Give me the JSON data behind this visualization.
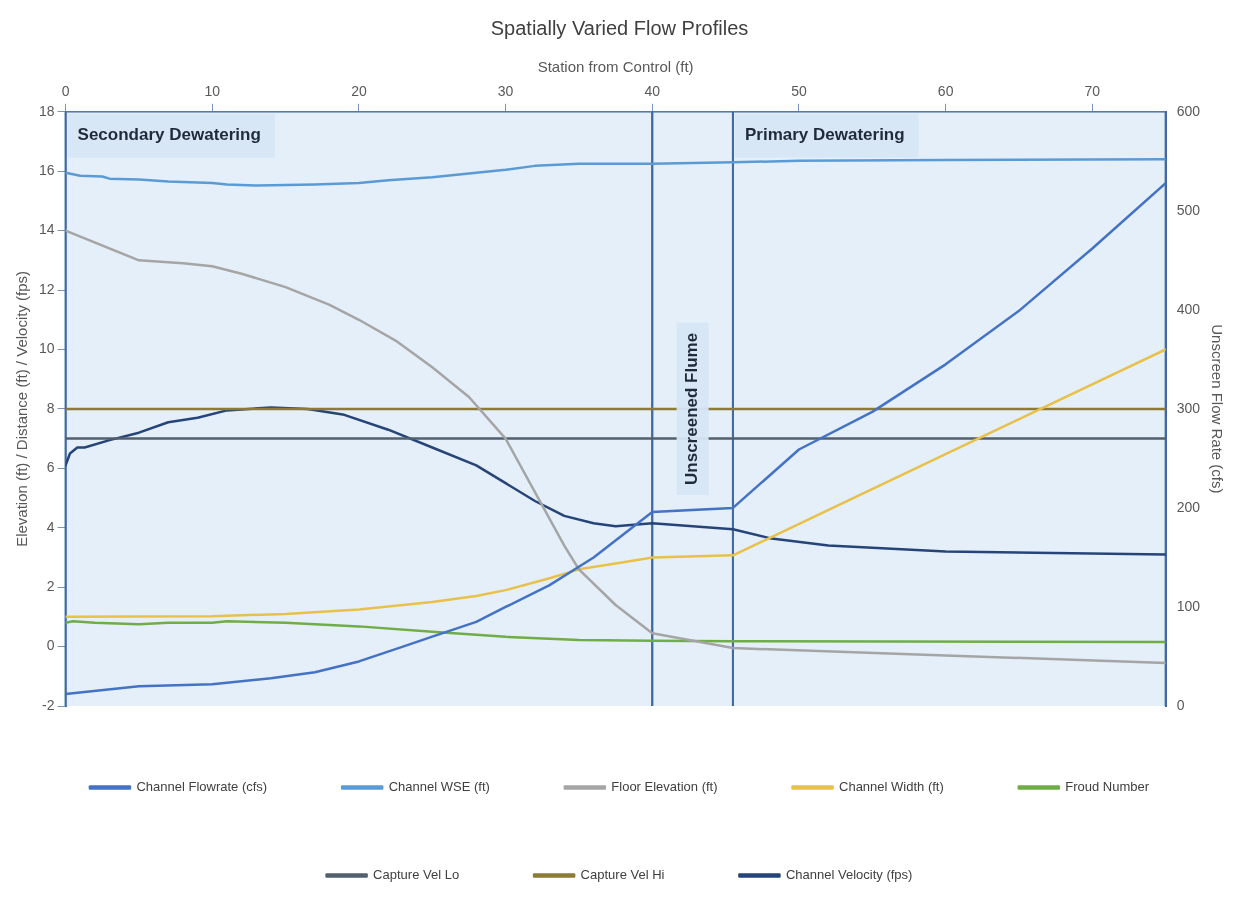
{
  "chart_data": {
    "type": "line",
    "title": "Spatially Varied Flow Profiles",
    "xlabel": "Station from Control (ft)",
    "ylabel": "Elevation (ft) / Distance (ft) / Velocity (fps)",
    "y2label": "Unscreen Flow Rate (cfs)",
    "xlim": [
      0,
      75
    ],
    "xticks": [
      0,
      10,
      20,
      30,
      40,
      50,
      60,
      70
    ],
    "ylim": [
      -2,
      18
    ],
    "yticks": [
      -2,
      0,
      2,
      4,
      6,
      8,
      10,
      12,
      14,
      16,
      18
    ],
    "y2lim": [
      0,
      600
    ],
    "y2ticks": [
      0,
      100,
      200,
      300,
      400,
      500,
      600
    ],
    "grid": true,
    "legend": "bottom",
    "marker": "none",
    "line_style": "solid",
    "bands": [
      {
        "axis": "x",
        "from": 0,
        "to": 40,
        "label": "Secondary Dewatering",
        "color": "#cfe2f5"
      },
      {
        "axis": "x",
        "from": 40,
        "to": 45.5,
        "label": "Unscreened Flume",
        "color": "#cfe2f5"
      },
      {
        "axis": "x",
        "from": 45.5,
        "to": 75,
        "label": "Primary Dewatering",
        "color": "#cfe2f5"
      }
    ],
    "series": [
      {
        "name": "Channel Flowrate (cfs)",
        "color": "#4472c4",
        "axis": "y2",
        "x": [
          0,
          5,
          10,
          14,
          17,
          20,
          23,
          25,
          28,
          30,
          33,
          36,
          40,
          45.5,
          50,
          55,
          60,
          65,
          70,
          75
        ],
        "values": [
          12,
          20,
          22,
          28,
          34,
          45,
          60,
          70,
          85,
          100,
          122,
          150,
          196,
          200,
          259,
          297,
          345,
          399,
          462,
          528
        ]
      },
      {
        "name": "Channel WSE (ft)",
        "color": "#5b9bd5",
        "x": [
          0,
          1,
          2.5,
          3,
          5,
          7,
          10,
          11,
          13,
          17,
          20,
          22,
          25,
          28,
          30,
          32,
          35,
          40,
          45.5,
          50,
          60,
          75
        ],
        "values": [
          15.95,
          15.85,
          15.82,
          15.75,
          15.72,
          15.65,
          15.6,
          15.55,
          15.52,
          15.55,
          15.6,
          15.7,
          15.8,
          15.95,
          16.05,
          16.18,
          16.25,
          16.25,
          16.3,
          16.35,
          16.38,
          16.4
        ]
      },
      {
        "name": "Floor Elevation (ft)",
        "color": "#a5a5a5",
        "x": [
          0,
          5,
          8,
          10,
          12,
          15,
          18,
          20,
          22.5,
          25,
          27.5,
          30,
          32,
          34,
          35,
          37.5,
          40,
          45.5,
          60,
          75
        ],
        "values": [
          14,
          13,
          12.9,
          12.8,
          12.55,
          12.1,
          11.5,
          11,
          10.3,
          9.4,
          8.4,
          7,
          5.2,
          3.4,
          2.6,
          1.4,
          0.45,
          -0.05,
          -0.3,
          -0.55
        ]
      },
      {
        "name": "Channel Width (ft)",
        "color": "#e8c14a",
        "x": [
          0,
          10,
          15,
          20,
          25,
          28,
          30,
          33,
          35,
          37.5,
          40,
          45.5,
          75
        ],
        "values": [
          1,
          1.02,
          1.1,
          1.25,
          1.5,
          1.7,
          1.9,
          2.3,
          2.6,
          2.8,
          3,
          3.07,
          10
        ]
      },
      {
        "name": "Froud Number",
        "color": "#70ad47",
        "x": [
          0,
          0.5,
          2,
          5,
          7,
          10,
          11,
          15,
          20,
          25,
          30,
          35,
          40,
          45.5,
          75
        ],
        "values": [
          0.8,
          0.85,
          0.8,
          0.75,
          0.8,
          0.8,
          0.85,
          0.8,
          0.68,
          0.5,
          0.33,
          0.22,
          0.2,
          0.18,
          0.15
        ]
      },
      {
        "name": "Capture Vel Lo",
        "color": "#52606d",
        "x": [
          0,
          75
        ],
        "values": [
          7,
          7
        ]
      },
      {
        "name": "Capture Vel Hi",
        "color": "#8c7a35",
        "x": [
          0,
          75
        ],
        "values": [
          8,
          8
        ]
      },
      {
        "name": "Channel Velocity (fps)",
        "color": "#264478",
        "x": [
          0,
          0.3,
          0.8,
          1.3,
          3,
          5,
          7,
          9,
          11,
          14,
          16.5,
          19,
          22,
          25,
          28,
          30,
          32,
          34,
          36,
          37.5,
          40,
          45.5,
          48,
          52,
          56,
          60,
          75
        ],
        "values": [
          6.1,
          6.5,
          6.7,
          6.7,
          6.95,
          7.2,
          7.55,
          7.7,
          7.95,
          8.05,
          8,
          7.8,
          7.3,
          6.7,
          6.1,
          5.5,
          4.9,
          4.4,
          4.15,
          4.05,
          4.15,
          3.95,
          3.65,
          3.4,
          3.3,
          3.2,
          3.1
        ]
      }
    ]
  }
}
